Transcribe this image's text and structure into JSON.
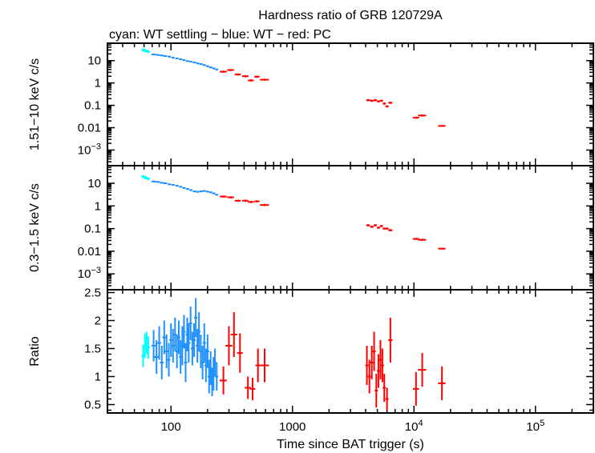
{
  "title": "Hardness ratio of GRB 120729A",
  "subtitle": "cyan: WT settling − blue: WT − red: PC",
  "xlabel": "Time since BAT trigger (s)",
  "colors": {
    "cyan": "#00ffff",
    "blue": "#1e90ff",
    "red": "#ff0000",
    "axis": "#000000"
  },
  "x_ticks": [
    {
      "value": 100,
      "label": "100",
      "type": "plain"
    },
    {
      "value": 1000,
      "label": "1000",
      "type": "plain"
    },
    {
      "value": 10000,
      "base": "10",
      "exp": "4",
      "type": "pow"
    },
    {
      "value": 100000,
      "base": "10",
      "exp": "5",
      "type": "pow"
    }
  ],
  "chart_data": [
    {
      "type": "scatter",
      "panel": "hard",
      "ylabel": "1.51−10 keV c/s",
      "xscale": "log",
      "yscale": "log",
      "xlim": [
        30,
        300000
      ],
      "ylim": [
        0.0002,
        60
      ],
      "y_ticks": [
        {
          "value": 10,
          "label": "10",
          "type": "plain"
        },
        {
          "value": 1,
          "label": "1",
          "type": "plain"
        },
        {
          "value": 0.1,
          "label": "0.1",
          "type": "plain"
        },
        {
          "value": 0.01,
          "label": "0.01",
          "type": "plain"
        },
        {
          "value": 0.001,
          "base": "10",
          "exp": "−3",
          "type": "pow"
        }
      ],
      "series": [
        {
          "color_key": "cyan",
          "points": [
            [
              59,
              30,
              1.5,
              6
            ],
            [
              61,
              28,
              1.5,
              6
            ],
            [
              63,
              27,
              1.5,
              5
            ],
            [
              65,
              25,
              1.5,
              5
            ]
          ]
        },
        {
          "color_key": "blue",
          "points": [
            [
              72,
              19,
              3,
              3
            ],
            [
              78,
              18,
              3,
              3
            ],
            [
              84,
              17,
              3,
              3
            ],
            [
              90,
              16,
              3,
              3
            ],
            [
              97,
              15,
              3,
              3
            ],
            [
              104,
              13.5,
              3,
              3
            ],
            [
              112,
              12.5,
              3,
              3
            ],
            [
              120,
              11.5,
              3,
              3
            ],
            [
              128,
              10.5,
              3,
              3
            ],
            [
              137,
              9.5,
              3,
              3
            ],
            [
              146,
              9,
              3,
              3
            ],
            [
              156,
              8.3,
              3,
              3
            ],
            [
              166,
              7.5,
              3,
              3
            ],
            [
              177,
              7,
              3,
              3
            ],
            [
              188,
              6.3,
              3,
              3
            ],
            [
              200,
              5.6,
              3,
              3
            ],
            [
              212,
              5,
              3,
              3
            ],
            [
              225,
              4.5,
              3,
              3
            ],
            [
              238,
              4,
              3,
              3
            ]
          ]
        },
        {
          "color_key": "red",
          "points": [
            [
              270,
              3.2,
              18,
              4
            ],
            [
              310,
              3.8,
              20,
              4
            ],
            [
              355,
              2.4,
              20,
              4
            ],
            [
              410,
              2.0,
              25,
              4
            ],
            [
              455,
              1.3,
              25,
              4
            ],
            [
              510,
              1.9,
              25,
              4
            ],
            [
              590,
              1.4,
              50,
              4
            ],
            [
              4200,
              0.17,
              150,
              4
            ],
            [
              4500,
              0.16,
              150,
              4
            ],
            [
              4800,
              0.17,
              150,
              4
            ],
            [
              5100,
              0.15,
              150,
              4
            ],
            [
              5400,
              0.16,
              150,
              4
            ],
            [
              5700,
              0.12,
              150,
              4
            ],
            [
              6000,
              0.09,
              150,
              4
            ],
            [
              6400,
              0.13,
              250,
              4
            ],
            [
              10400,
              0.028,
              600,
              4
            ],
            [
              11700,
              0.035,
              900,
              4
            ],
            [
              17000,
              0.012,
              1200,
              3
            ]
          ]
        }
      ]
    },
    {
      "type": "scatter",
      "panel": "soft",
      "ylabel": "0.3−1.5 keV c/s",
      "xscale": "log",
      "yscale": "log",
      "xlim": [
        30,
        300000
      ],
      "ylim": [
        0.0002,
        60
      ],
      "y_ticks": [
        {
          "value": 10,
          "label": "10",
          "type": "plain"
        },
        {
          "value": 1,
          "label": "1",
          "type": "plain"
        },
        {
          "value": 0.1,
          "label": "0.1",
          "type": "plain"
        },
        {
          "value": 0.01,
          "label": "0.01",
          "type": "plain"
        },
        {
          "value": 0.001,
          "base": "10",
          "exp": "−3",
          "type": "pow"
        }
      ],
      "series": [
        {
          "color_key": "cyan",
          "points": [
            [
              59,
              20,
              1.5,
              6
            ],
            [
              61,
              18,
              1.5,
              6
            ],
            [
              63,
              17,
              1.5,
              5
            ],
            [
              65,
              16,
              1.5,
              5
            ]
          ]
        },
        {
          "color_key": "blue",
          "points": [
            [
              72,
              12,
              3,
              3
            ],
            [
              78,
              11.5,
              3,
              3
            ],
            [
              84,
              10.5,
              3,
              3
            ],
            [
              90,
              10,
              3,
              3
            ],
            [
              97,
              9,
              3,
              3
            ],
            [
              104,
              8.5,
              3,
              3
            ],
            [
              112,
              7.8,
              3,
              3
            ],
            [
              120,
              7.0,
              3,
              3
            ],
            [
              128,
              6.2,
              3,
              3
            ],
            [
              137,
              5.6,
              3,
              3
            ],
            [
              146,
              5.0,
              3,
              3
            ],
            [
              156,
              4.4,
              3,
              3
            ],
            [
              166,
              4.2,
              3,
              3
            ],
            [
              177,
              4.4,
              3,
              3
            ],
            [
              188,
              4.6,
              3,
              3
            ],
            [
              200,
              4.3,
              3,
              3
            ],
            [
              212,
              4.0,
              3,
              3
            ],
            [
              225,
              3.6,
              3,
              3
            ],
            [
              238,
              3.1,
              3,
              3
            ]
          ]
        },
        {
          "color_key": "red",
          "points": [
            [
              270,
              2.6,
              18,
              4
            ],
            [
              310,
              2.4,
              20,
              4
            ],
            [
              355,
              1.7,
              20,
              4
            ],
            [
              410,
              1.7,
              25,
              4
            ],
            [
              455,
              1.5,
              25,
              4
            ],
            [
              510,
              1.6,
              25,
              4
            ],
            [
              590,
              1.1,
              50,
              4
            ],
            [
              4200,
              0.14,
              150,
              4
            ],
            [
              4500,
              0.12,
              150,
              4
            ],
            [
              4800,
              0.14,
              150,
              4
            ],
            [
              5100,
              0.11,
              150,
              4
            ],
            [
              5400,
              0.13,
              150,
              4
            ],
            [
              5700,
              0.1,
              150,
              4
            ],
            [
              6000,
              0.1,
              150,
              4
            ],
            [
              6400,
              0.085,
              250,
              4
            ],
            [
              10400,
              0.035,
              600,
              4
            ],
            [
              11700,
              0.032,
              900,
              4
            ],
            [
              17000,
              0.013,
              1200,
              3
            ]
          ]
        }
      ]
    },
    {
      "type": "scatter",
      "panel": "ratio",
      "ylabel": "Ratio",
      "xscale": "log",
      "yscale": "linear",
      "xlim": [
        30,
        300000
      ],
      "ylim": [
        0.35,
        2.55
      ],
      "y_ticks": [
        {
          "value": 2.5,
          "label": "2.5",
          "type": "plain"
        },
        {
          "value": 2,
          "label": "2",
          "type": "plain"
        },
        {
          "value": 1.5,
          "label": "1.5",
          "type": "plain"
        },
        {
          "value": 1,
          "label": "1",
          "type": "plain"
        },
        {
          "value": 0.5,
          "label": "0.5",
          "type": "plain"
        }
      ],
      "series": [
        {
          "color_key": "cyan",
          "points": [
            [
              59,
              1.37,
              1.5,
              0.2
            ],
            [
              61,
              1.55,
              1.5,
              0.22
            ],
            [
              63,
              1.6,
              1.5,
              0.2
            ],
            [
              65,
              1.52,
              1.5,
              0.2
            ]
          ]
        },
        {
          "color_key": "blue",
          "points": [
            [
              72,
              1.55,
              3,
              0.28
            ],
            [
              76,
              1.35,
              3,
              0.3
            ],
            [
              80,
              1.6,
              3,
              0.3
            ],
            [
              84,
              1.25,
              3,
              0.3
            ],
            [
              88,
              1.7,
              3,
              0.3
            ],
            [
              92,
              1.45,
              3,
              0.3
            ],
            [
              96,
              1.3,
              3,
              0.3
            ],
            [
              100,
              1.65,
              3,
              0.3
            ],
            [
              104,
              1.55,
              3,
              0.3
            ],
            [
              108,
              1.75,
              3,
              0.3
            ],
            [
              112,
              1.45,
              3,
              0.3
            ],
            [
              116,
              1.7,
              3,
              0.3
            ],
            [
              120,
              1.35,
              3,
              0.3
            ],
            [
              124,
              1.55,
              3,
              0.35
            ],
            [
              128,
              1.8,
              3,
              0.3
            ],
            [
              132,
              1.25,
              3,
              0.35
            ],
            [
              136,
              1.75,
              3,
              0.3
            ],
            [
              140,
              1.6,
              3,
              0.35
            ],
            [
              145,
              1.95,
              3,
              0.3
            ],
            [
              150,
              1.5,
              3,
              0.3
            ],
            [
              155,
              1.65,
              3,
              0.3
            ],
            [
              160,
              2.05,
              3,
              0.35
            ],
            [
              165,
              1.55,
              3,
              0.3
            ],
            [
              170,
              1.8,
              3,
              0.35
            ],
            [
              176,
              1.45,
              3,
              0.3
            ],
            [
              182,
              1.25,
              3,
              0.3
            ],
            [
              188,
              1.6,
              3,
              0.35
            ],
            [
              194,
              1.2,
              3,
              0.3
            ],
            [
              200,
              1.45,
              3,
              0.3
            ],
            [
              206,
              1.0,
              3,
              0.3
            ],
            [
              212,
              1.15,
              3,
              0.3
            ],
            [
              218,
              0.9,
              3,
              0.25
            ],
            [
              224,
              1.05,
              3,
              0.3
            ],
            [
              230,
              1.25,
              3,
              0.25
            ],
            [
              238,
              1.0,
              3,
              0.25
            ]
          ]
        },
        {
          "color_key": "red",
          "points": [
            [
              270,
              0.93,
              18,
              0.25
            ],
            [
              300,
              1.55,
              20,
              0.35
            ],
            [
              330,
              1.75,
              20,
              0.4
            ],
            [
              370,
              1.42,
              20,
              0.35
            ],
            [
              430,
              0.8,
              25,
              0.2
            ],
            [
              470,
              0.78,
              25,
              0.2
            ],
            [
              520,
              1.2,
              25,
              0.3
            ],
            [
              590,
              1.2,
              50,
              0.3
            ],
            [
              4100,
              1.2,
              120,
              0.35
            ],
            [
              4300,
              1.0,
              120,
              0.3
            ],
            [
              4500,
              1.25,
              120,
              0.3
            ],
            [
              4700,
              1.45,
              120,
              0.35
            ],
            [
              4900,
              0.75,
              120,
              0.3
            ],
            [
              5100,
              1.1,
              120,
              0.3
            ],
            [
              5300,
              1.3,
              120,
              0.35
            ],
            [
              5500,
              1.2,
              120,
              0.3
            ],
            [
              5700,
              0.8,
              120,
              0.25
            ],
            [
              6000,
              0.6,
              150,
              0.2
            ],
            [
              6400,
              1.65,
              250,
              0.4
            ],
            [
              10400,
              0.78,
              600,
              0.3
            ],
            [
              11700,
              1.12,
              900,
              0.3
            ],
            [
              17000,
              0.88,
              1200,
              0.3
            ]
          ]
        }
      ]
    }
  ]
}
